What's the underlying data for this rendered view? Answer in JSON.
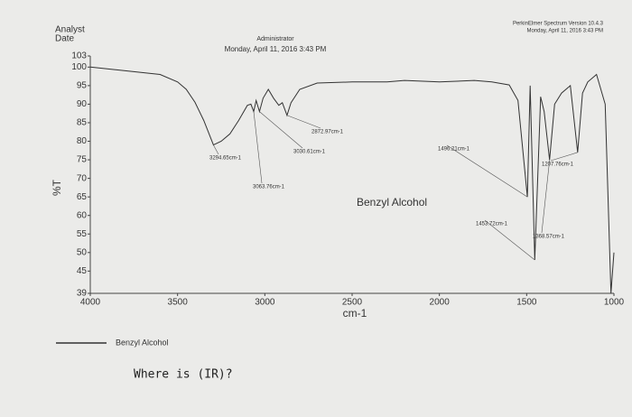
{
  "chart_data": {
    "type": "line",
    "software": "PerkinElmer Spectrum Version 10.4.3",
    "software_timestamp": "Monday, April 11, 2016 3:43 PM",
    "analyst_label": "Analyst",
    "date_label": "Date",
    "operator": "Administrator",
    "timestamp": "Monday, April 11, 2016 3:43 PM",
    "plot_label": "Benzyl Alcohol",
    "x_label": "cm-1",
    "y_label": "%T",
    "note": "Where is (IR)?",
    "x": [
      4000,
      3800,
      3600,
      3500,
      3450,
      3400,
      3350,
      3294.65,
      3250,
      3200,
      3150,
      3100,
      3080,
      3063.76,
      3050,
      3030.61,
      3010,
      2980,
      2950,
      2920,
      2900,
      2872.97,
      2850,
      2800,
      2700,
      2500,
      2300,
      2200,
      2000,
      1800,
      1700,
      1600,
      1550,
      1496.21,
      1480,
      1453.72,
      1420,
      1400,
      1368.57,
      1340,
      1300,
      1250,
      1207.76,
      1180,
      1150,
      1100,
      1050,
      1017,
      1000
    ],
    "series": [
      {
        "name": "Benzyl Alcohol",
        "color": "#333333",
        "values": [
          100,
          99,
          98,
          96,
          94,
          90.5,
          85.6,
          79,
          80,
          82,
          85.6,
          89.7,
          90,
          88,
          91,
          88,
          91.6,
          94,
          91.6,
          89.7,
          90.4,
          87,
          90.4,
          94,
          95.7,
          96,
          96,
          96.4,
          96,
          96.4,
          96,
          95.2,
          91,
          65,
          95,
          48,
          92,
          88,
          75,
          90,
          93,
          95,
          77,
          93,
          96,
          98,
          90,
          39,
          50
        ]
      }
    ],
    "annotations": [
      {
        "label": "3294.65cm-1",
        "x": 3294.65,
        "y": 79
      },
      {
        "label": "3063.76cm-1",
        "x": 3063.76,
        "y": 88
      },
      {
        "label": "3030.61cm-1",
        "x": 3030.61,
        "y": 88
      },
      {
        "label": "2872.97cm-1",
        "x": 2872.97,
        "y": 87
      },
      {
        "label": "1496.21cm-1",
        "x": 1496.21,
        "y": 65
      },
      {
        "label": "1453.72cm-1",
        "x": 1453.72,
        "y": 48
      },
      {
        "label": "1368.57cm-1",
        "x": 1368.57,
        "y": 75
      },
      {
        "label": "1207.76cm-1",
        "x": 1207.76,
        "y": 77
      }
    ],
    "xlim": [
      4000,
      1000
    ],
    "ylim": [
      39,
      103
    ],
    "xticks": [
      4000,
      3500,
      3000,
      2500,
      2000,
      1500,
      1000
    ],
    "yticks": [
      39,
      45,
      50,
      55,
      60,
      65,
      70,
      75,
      80,
      85,
      90,
      95,
      100,
      103
    ]
  }
}
